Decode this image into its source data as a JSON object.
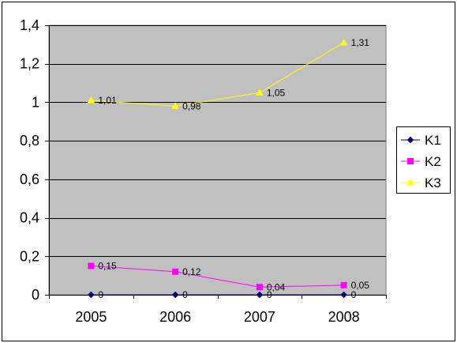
{
  "chart_data": {
    "type": "line",
    "title": "",
    "xlabel": "",
    "ylabel": "",
    "categories": [
      "2005",
      "2006",
      "2007",
      "2008"
    ],
    "ylim": [
      0,
      1.4
    ],
    "yticks": [
      "0",
      "0,2",
      "0,4",
      "0,6",
      "0,8",
      "1",
      "1,2",
      "1,4"
    ],
    "yticks_values": [
      0,
      0.2,
      0.4,
      0.6,
      0.8,
      1.0,
      1.2,
      1.4
    ],
    "grid": true,
    "legend_position": "right",
    "plot_background": "#c0c0c0",
    "series": [
      {
        "name": "K1",
        "values": [
          0,
          0,
          0,
          0
        ],
        "labels": [
          "0",
          "0",
          "0",
          "0"
        ],
        "color": "#000080",
        "marker": "diamond"
      },
      {
        "name": "K2",
        "values": [
          0.15,
          0.12,
          0.04,
          0.05
        ],
        "labels": [
          "0,15",
          "0,12",
          "0,04",
          "0,05"
        ],
        "color": "#ff00ff",
        "marker": "square"
      },
      {
        "name": "K3",
        "values": [
          1.01,
          0.98,
          1.05,
          1.31
        ],
        "labels": [
          "1,01",
          "0,98",
          "1,05",
          "1,31"
        ],
        "color": "#ffff00",
        "marker": "triangle"
      }
    ]
  }
}
